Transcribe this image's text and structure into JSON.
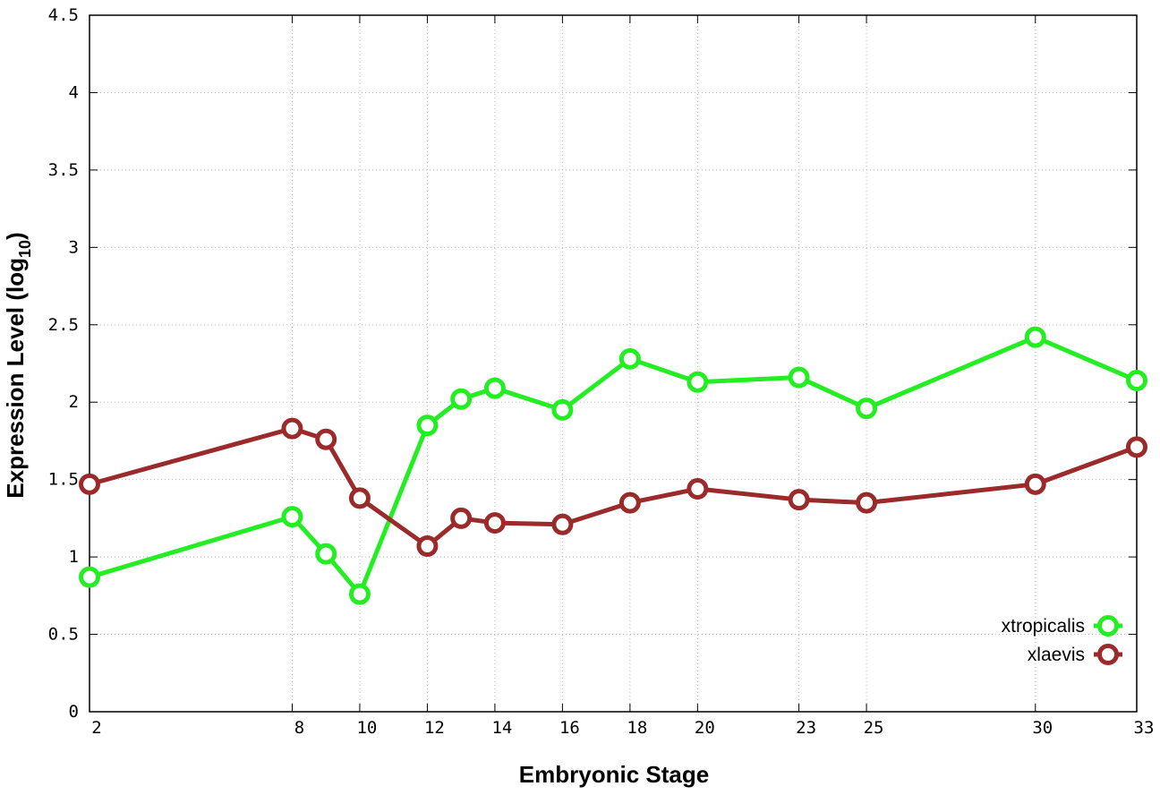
{
  "chart_data": {
    "type": "line",
    "xlabel": "Embryonic Stage",
    "ylabel": "Expression Level (log",
    "ylabel_sub": "10",
    "ylabel_close": ")",
    "x": [
      2,
      8,
      9,
      10,
      12,
      13,
      14,
      16,
      18,
      20,
      23,
      25,
      30,
      33
    ],
    "x_ticks": [
      "2",
      "8",
      "10",
      "12",
      "14",
      "16",
      "18",
      "20",
      "23",
      "25",
      "30",
      "33"
    ],
    "y_ticks": [
      "0",
      "0.5",
      "1",
      "1.5",
      "2",
      "2.5",
      "3",
      "3.5",
      "4",
      "4.5"
    ],
    "ylim": [
      0,
      4.5
    ],
    "grid": true,
    "legend_position": "bottom-right",
    "series": [
      {
        "name": "xtropicalis",
        "color": "#22ee22",
        "values": [
          0.87,
          1.26,
          1.02,
          0.76,
          1.85,
          2.02,
          2.09,
          1.95,
          2.28,
          2.13,
          2.16,
          1.96,
          2.42,
          2.14
        ]
      },
      {
        "name": "xlaevis",
        "color": "#9b2a2a",
        "values": [
          1.47,
          1.83,
          1.76,
          1.38,
          1.07,
          1.25,
          1.22,
          1.21,
          1.35,
          1.44,
          1.37,
          1.35,
          1.47,
          1.71
        ]
      }
    ]
  }
}
